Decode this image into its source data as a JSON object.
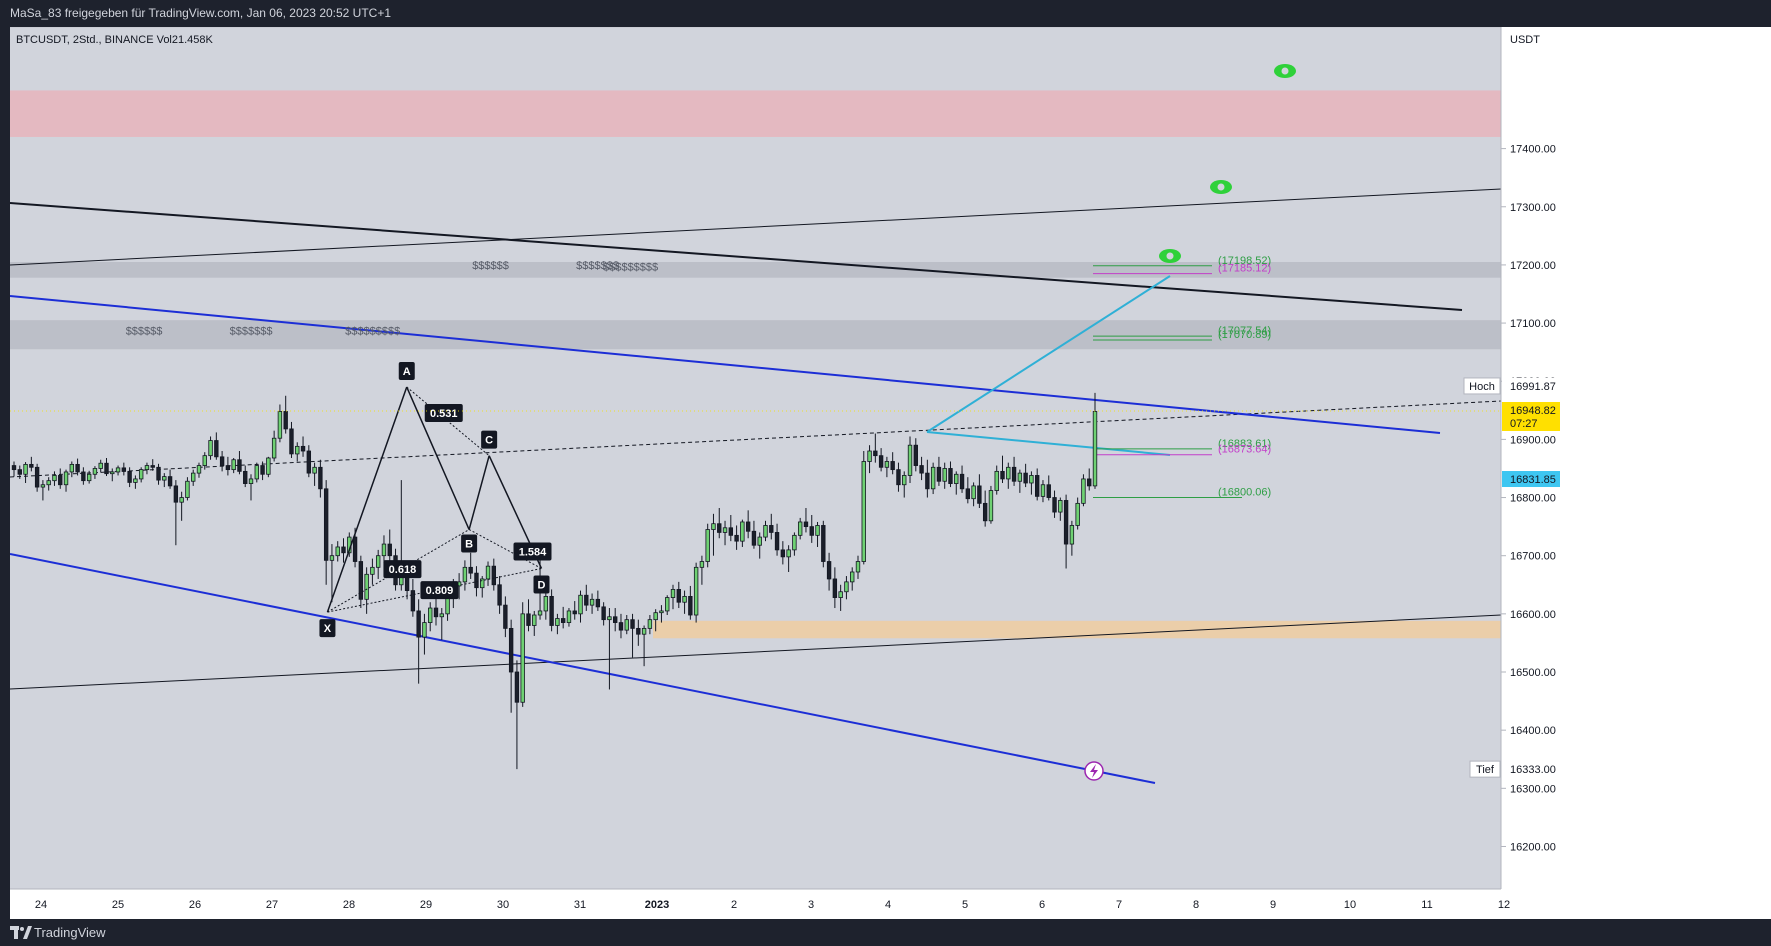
{
  "header": {
    "share_text": "MaSa_83 freigegeben für TradingView.com, Jan 06, 2023 20:52 UTC+1"
  },
  "footer": {
    "brand": "TradingView"
  },
  "chart_data": {
    "type": "candlestick",
    "legend": "BTCUSDT, 2Std., BINANCE  Vol21.458K",
    "currency": "USDT",
    "ylim": [
      16120,
      17530
    ],
    "y_ticks": [
      "17400.00",
      "17300.00",
      "17200.00",
      "17100.00",
      "17000.00",
      "16900.00",
      "16800.00",
      "16700.00",
      "16600.00",
      "16500.00",
      "16400.00",
      "16300.00",
      "16200.00"
    ],
    "x_ticks": [
      "24",
      "25",
      "26",
      "27",
      "28",
      "29",
      "30",
      "31",
      "2023",
      "2",
      "3",
      "4",
      "5",
      "6",
      "7",
      "8",
      "9",
      "10",
      "11",
      "12"
    ],
    "price_labels": {
      "high": {
        "label": "Hoch",
        "value": "16991.87",
        "price": 16991.87
      },
      "low": {
        "label": "Tief",
        "value": "16333.00",
        "price": 16333.0
      },
      "last": {
        "value": "16948.82",
        "timer": "07:27",
        "price": 16948.82
      },
      "line": {
        "value": "16831.85",
        "price": 16831.85
      }
    },
    "zones": [
      {
        "name": "supply",
        "from": 17420,
        "to": 17500,
        "color": "#e8b4bc"
      },
      {
        "name": "liquidity-upper",
        "from": 17178,
        "to": 17205,
        "color": "#b8bbc4"
      },
      {
        "name": "liquidity-lower",
        "from": 17055,
        "to": 17105,
        "color": "#b8bbc4"
      },
      {
        "name": "demand",
        "from": 16558,
        "to": 16588,
        "color": "#f0cda0"
      }
    ],
    "dollar_labels": [
      {
        "text": "$$$$$$",
        "day": 5.6,
        "price": 17193
      },
      {
        "text": "$$$$$$$",
        "day": 6.95,
        "price": 17193
      },
      {
        "text": "$$$$$$$$$",
        "day": 7.3,
        "price": 17190
      },
      {
        "text": "$$$$$$",
        "day": 1.1,
        "price": 17080
      },
      {
        "text": "$$$$$$$",
        "day": 2.45,
        "price": 17080
      },
      {
        "text": "$$$$$$$$$",
        "day": 3.95,
        "price": 17080
      }
    ],
    "level_labels": [
      {
        "text": "(17198.52)",
        "price": 17198.52,
        "color": "#2e9e45"
      },
      {
        "text": "(17185.12)",
        "price": 17185.12,
        "color": "#c23fc9"
      },
      {
        "text": "(17077.54)",
        "price": 17077.54,
        "color": "#2e9e45"
      },
      {
        "text": "(17070.89)",
        "price": 17070.89,
        "color": "#2e9e45"
      },
      {
        "text": "(16883.61)",
        "price": 16883.61,
        "color": "#2e9e45"
      },
      {
        "text": "(16873.64)",
        "price": 16873.64,
        "color": "#c23fc9"
      },
      {
        "text": "(16800.06)",
        "price": 16800.06,
        "color": "#2e9e45"
      }
    ],
    "harmonic_points": [
      {
        "name": "X",
        "day": 3.72,
        "price": 16603
      },
      {
        "name": "A",
        "day": 4.75,
        "price": 16990
      },
      {
        "name": "B",
        "day": 5.56,
        "price": 16745
      },
      {
        "name": "C",
        "day": 5.82,
        "price": 16872
      },
      {
        "name": "D",
        "day": 6.5,
        "price": 16678
      }
    ],
    "ratios": [
      "0.531",
      "0.618",
      "1.584",
      "0.809"
    ],
    "candles": [
      [
        16855,
        16862,
        16836,
        16848
      ],
      [
        16848,
        16855,
        16832,
        16840
      ],
      [
        16840,
        16861,
        16825,
        16857
      ],
      [
        16857,
        16870,
        16845,
        16852
      ],
      [
        16852,
        16858,
        16810,
        16818
      ],
      [
        16818,
        16830,
        16795,
        16822
      ],
      [
        16822,
        16835,
        16812,
        16829
      ],
      [
        16829,
        16845,
        16820,
        16838
      ],
      [
        16838,
        16850,
        16815,
        16822
      ],
      [
        16822,
        16848,
        16810,
        16844
      ],
      [
        16844,
        16862,
        16835,
        16857
      ],
      [
        16857,
        16867,
        16838,
        16844
      ],
      [
        16844,
        16852,
        16822,
        16829
      ],
      [
        16829,
        16846,
        16824,
        16840
      ],
      [
        16840,
        16854,
        16832,
        16850
      ],
      [
        16850,
        16865,
        16843,
        16859
      ],
      [
        16859,
        16868,
        16837,
        16841
      ],
      [
        16841,
        16850,
        16828,
        16844
      ],
      [
        16844,
        16855,
        16838,
        16851
      ],
      [
        16851,
        16860,
        16838,
        16845
      ],
      [
        16845,
        16852,
        16818,
        16826
      ],
      [
        16826,
        16838,
        16815,
        16832
      ],
      [
        16832,
        16852,
        16826,
        16848
      ],
      [
        16848,
        16860,
        16840,
        16855
      ],
      [
        16855,
        16866,
        16846,
        16852
      ],
      [
        16852,
        16858,
        16822,
        16830
      ],
      [
        16830,
        16842,
        16818,
        16836
      ],
      [
        16836,
        16848,
        16815,
        16820
      ],
      [
        16820,
        16830,
        16718,
        16792
      ],
      [
        16792,
        16810,
        16760,
        16800
      ],
      [
        16800,
        16835,
        16795,
        16828
      ],
      [
        16828,
        16848,
        16820,
        16842
      ],
      [
        16842,
        16860,
        16834,
        16855
      ],
      [
        16855,
        16878,
        16848,
        16872
      ],
      [
        16872,
        16905,
        16865,
        16898
      ],
      [
        16898,
        16912,
        16865,
        16870
      ],
      [
        16870,
        16880,
        16845,
        16855
      ],
      [
        16855,
        16870,
        16838,
        16848
      ],
      [
        16848,
        16868,
        16842,
        16865
      ],
      [
        16865,
        16880,
        16840,
        16845
      ],
      [
        16845,
        16855,
        16818,
        16824
      ],
      [
        16824,
        16840,
        16795,
        16832
      ],
      [
        16832,
        16860,
        16826,
        16855
      ],
      [
        16855,
        16862,
        16830,
        16840
      ],
      [
        16840,
        16870,
        16835,
        16868
      ],
      [
        16868,
        16915,
        16862,
        16902
      ],
      [
        16902,
        16960,
        16895,
        16948
      ],
      [
        16948,
        16975,
        16910,
        16918
      ],
      [
        16918,
        16930,
        16868,
        16875
      ],
      [
        16875,
        16895,
        16862,
        16888
      ],
      [
        16888,
        16905,
        16870,
        16880
      ],
      [
        16880,
        16890,
        16835,
        16842
      ],
      [
        16842,
        16860,
        16820,
        16852
      ],
      [
        16852,
        16865,
        16800,
        16815
      ],
      [
        16815,
        16830,
        16650,
        16692
      ],
      [
        16692,
        16720,
        16620,
        16700
      ],
      [
        16700,
        16725,
        16690,
        16715
      ],
      [
        16715,
        16730,
        16688,
        16705
      ],
      [
        16705,
        16740,
        16698,
        16732
      ],
      [
        16732,
        16748,
        16680,
        16690
      ],
      [
        16690,
        16700,
        16610,
        16625
      ],
      [
        16625,
        16680,
        16600,
        16668
      ],
      [
        16668,
        16695,
        16650,
        16680
      ],
      [
        16680,
        16710,
        16660,
        16700
      ],
      [
        16700,
        16735,
        16688,
        16720
      ],
      [
        16720,
        16745,
        16690,
        16700
      ],
      [
        16700,
        16712,
        16640,
        16650
      ],
      [
        16650,
        16830,
        16640,
        16668
      ],
      [
        16668,
        16690,
        16625,
        16640
      ],
      [
        16640,
        16660,
        16595,
        16605
      ],
      [
        16605,
        16625,
        16480,
        16560
      ],
      [
        16560,
        16600,
        16530,
        16585
      ],
      [
        16585,
        16620,
        16570,
        16610
      ],
      [
        16610,
        16632,
        16580,
        16595
      ],
      [
        16595,
        16610,
        16555,
        16600
      ],
      [
        16600,
        16640,
        16588,
        16630
      ],
      [
        16630,
        16660,
        16610,
        16648
      ],
      [
        16648,
        16670,
        16625,
        16655
      ],
      [
        16655,
        16692,
        16640,
        16680
      ],
      [
        16680,
        16705,
        16660,
        16670
      ],
      [
        16670,
        16682,
        16630,
        16645
      ],
      [
        16645,
        16665,
        16628,
        16660
      ],
      [
        16660,
        16690,
        16648,
        16682
      ],
      [
        16682,
        16695,
        16640,
        16650
      ],
      [
        16650,
        16665,
        16600,
        16615
      ],
      [
        16615,
        16630,
        16560,
        16575
      ],
      [
        16575,
        16590,
        16430,
        16500
      ],
      [
        16500,
        16520,
        16333,
        16448
      ],
      [
        16448,
        16620,
        16440,
        16600
      ],
      [
        16600,
        16625,
        16570,
        16580
      ],
      [
        16580,
        16605,
        16562,
        16598
      ],
      [
        16598,
        16702,
        16590,
        16605
      ],
      [
        16605,
        16640,
        16590,
        16630
      ],
      [
        16630,
        16642,
        16570,
        16580
      ],
      [
        16580,
        16600,
        16565,
        16592
      ],
      [
        16592,
        16612,
        16575,
        16585
      ],
      [
        16585,
        16610,
        16578,
        16605
      ],
      [
        16605,
        16622,
        16590,
        16600
      ],
      [
        16600,
        16640,
        16585,
        16632
      ],
      [
        16632,
        16650,
        16605,
        16615
      ],
      [
        16615,
        16635,
        16600,
        16625
      ],
      [
        16625,
        16640,
        16605,
        16612
      ],
      [
        16612,
        16620,
        16580,
        16590
      ],
      [
        16590,
        16610,
        16470,
        16595
      ],
      [
        16595,
        16610,
        16570,
        16585
      ],
      [
        16585,
        16600,
        16558,
        16572
      ],
      [
        16572,
        16598,
        16565,
        16590
      ],
      [
        16590,
        16600,
        16525,
        16575
      ],
      [
        16575,
        16590,
        16545,
        16565
      ],
      [
        16565,
        16580,
        16510,
        16575
      ],
      [
        16575,
        16598,
        16565,
        16590
      ],
      [
        16590,
        16608,
        16570,
        16602
      ],
      [
        16602,
        16615,
        16585,
        16605
      ],
      [
        16605,
        16632,
        16598,
        16628
      ],
      [
        16628,
        16650,
        16608,
        16642
      ],
      [
        16642,
        16655,
        16610,
        16620
      ],
      [
        16620,
        16640,
        16600,
        16630
      ],
      [
        16630,
        16648,
        16590,
        16598
      ],
      [
        16598,
        16688,
        16585,
        16680
      ],
      [
        16680,
        16700,
        16650,
        16690
      ],
      [
        16690,
        16755,
        16680,
        16745
      ],
      [
        16745,
        16772,
        16700,
        16755
      ],
      [
        16755,
        16782,
        16730,
        16740
      ],
      [
        16740,
        16760,
        16718,
        16748
      ],
      [
        16748,
        16770,
        16725,
        16735
      ],
      [
        16735,
        16752,
        16710,
        16725
      ],
      [
        16725,
        16762,
        16715,
        16758
      ],
      [
        16758,
        16778,
        16730,
        16742
      ],
      [
        16742,
        16760,
        16712,
        16718
      ],
      [
        16718,
        16740,
        16695,
        16732
      ],
      [
        16732,
        16760,
        16725,
        16752
      ],
      [
        16752,
        16772,
        16728,
        16740
      ],
      [
        16740,
        16755,
        16700,
        16710
      ],
      [
        16710,
        16725,
        16685,
        16698
      ],
      [
        16698,
        16718,
        16672,
        16710
      ],
      [
        16710,
        16740,
        16700,
        16735
      ],
      [
        16735,
        16765,
        16728,
        16758
      ],
      [
        16758,
        16782,
        16740,
        16750
      ],
      [
        16750,
        16770,
        16722,
        16735
      ],
      [
        16735,
        16758,
        16715,
        16752
      ],
      [
        16752,
        16760,
        16680,
        16690
      ],
      [
        16690,
        16705,
        16640,
        16660
      ],
      [
        16660,
        16680,
        16610,
        16628
      ],
      [
        16628,
        16650,
        16605,
        16638
      ],
      [
        16638,
        16665,
        16625,
        16655
      ],
      [
        16655,
        16680,
        16640,
        16672
      ],
      [
        16672,
        16700,
        16660,
        16690
      ],
      [
        16690,
        16880,
        16685,
        16862
      ],
      [
        16862,
        16890,
        16842,
        16880
      ],
      [
        16880,
        16910,
        16860,
        16872
      ],
      [
        16872,
        16885,
        16845,
        16852
      ],
      [
        16852,
        16870,
        16835,
        16862
      ],
      [
        16862,
        16878,
        16840,
        16848
      ],
      [
        16848,
        16860,
        16810,
        16822
      ],
      [
        16822,
        16845,
        16800,
        16838
      ],
      [
        16838,
        16905,
        16825,
        16890
      ],
      [
        16890,
        16902,
        16845,
        16855
      ],
      [
        16855,
        16870,
        16830,
        16842
      ],
      [
        16842,
        16865,
        16800,
        16815
      ],
      [
        16815,
        16860,
        16806,
        16852
      ],
      [
        16852,
        16870,
        16820,
        16828
      ],
      [
        16828,
        16860,
        16815,
        16850
      ],
      [
        16850,
        16862,
        16818,
        16824
      ],
      [
        16824,
        16845,
        16805,
        16840
      ],
      [
        16840,
        16855,
        16808,
        16815
      ],
      [
        16815,
        16835,
        16790,
        16798
      ],
      [
        16798,
        16826,
        16785,
        16820
      ],
      [
        16820,
        16840,
        16782,
        16790
      ],
      [
        16790,
        16812,
        16750,
        16760
      ],
      [
        16760,
        16820,
        16755,
        16812
      ],
      [
        16812,
        16855,
        16805,
        16845
      ],
      [
        16845,
        16872,
        16825,
        16832
      ],
      [
        16832,
        16860,
        16815,
        16852
      ],
      [
        16852,
        16870,
        16820,
        16828
      ],
      [
        16828,
        16848,
        16808,
        16842
      ],
      [
        16842,
        16858,
        16818,
        16825
      ],
      [
        16825,
        16845,
        16805,
        16838
      ],
      [
        16838,
        16850,
        16795,
        16802
      ],
      [
        16802,
        16830,
        16792,
        16822
      ],
      [
        16822,
        16838,
        16795,
        16800
      ],
      [
        16800,
        16812,
        16765,
        16775
      ],
      [
        16775,
        16800,
        16760,
        16795
      ],
      [
        16795,
        16805,
        16678,
        16720
      ],
      [
        16720,
        16760,
        16700,
        16752
      ],
      [
        16752,
        16800,
        16745,
        16790
      ],
      [
        16790,
        16840,
        16785,
        16832
      ],
      [
        16832,
        16850,
        16812,
        16820
      ],
      [
        16820,
        16980,
        16815,
        16948
      ]
    ]
  }
}
